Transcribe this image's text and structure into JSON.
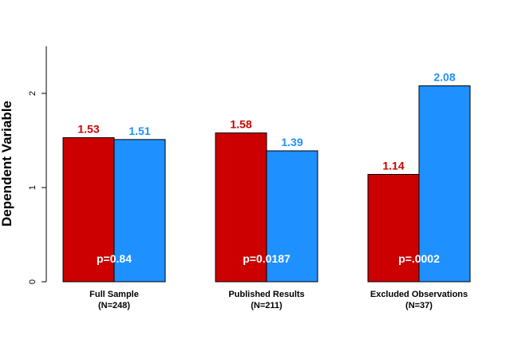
{
  "chart_data": {
    "type": "bar",
    "ylabel": "Dependent Variable",
    "ylim": [
      0,
      2.5
    ],
    "yticks": [
      "0",
      "1",
      "2"
    ],
    "categories": [
      {
        "name": "Full Sample",
        "n": "(N=248)",
        "p": "p=0.84"
      },
      {
        "name": "Published Results",
        "n": "(N=211)",
        "p": "p=0.0187"
      },
      {
        "name": "Excluded Observations",
        "n": "(N=37)",
        "p": "p=.0002"
      }
    ],
    "series": [
      {
        "color": "#cc0000",
        "values": [
          1.53,
          1.58,
          1.14
        ],
        "labels": [
          "1.53",
          "1.58",
          "1.14"
        ]
      },
      {
        "color": "#1e90ff",
        "values": [
          1.51,
          1.39,
          2.08
        ],
        "labels": [
          "1.51",
          "1.39",
          "2.08"
        ]
      }
    ]
  }
}
